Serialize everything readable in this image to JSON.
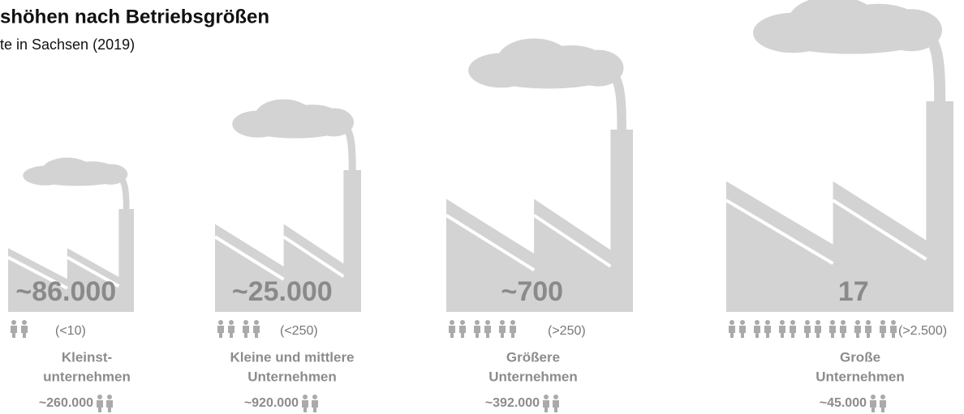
{
  "header": {
    "title": "shöhen nach Betriebsgrößen",
    "subtitle": "te in Sachsen (2019)"
  },
  "factories": [
    {
      "count": "~86.000",
      "size": "(<10)",
      "name": [
        "Kleinst-",
        "unternehmen"
      ],
      "employees": "~260.000"
    },
    {
      "count": "~25.000",
      "size": "(<250)",
      "name": [
        "Kleine und mittlere",
        "Unternehmen"
      ],
      "employees": "~920.000"
    },
    {
      "count": "~700",
      "size": "(>250)",
      "name": [
        "Größere",
        "Unternehmen"
      ],
      "employees": "~392.000"
    },
    {
      "count": "17",
      "size": "(>2.500)",
      "name": [
        "Große",
        "Unternehmen"
      ],
      "employees": "~45.000"
    }
  ]
}
